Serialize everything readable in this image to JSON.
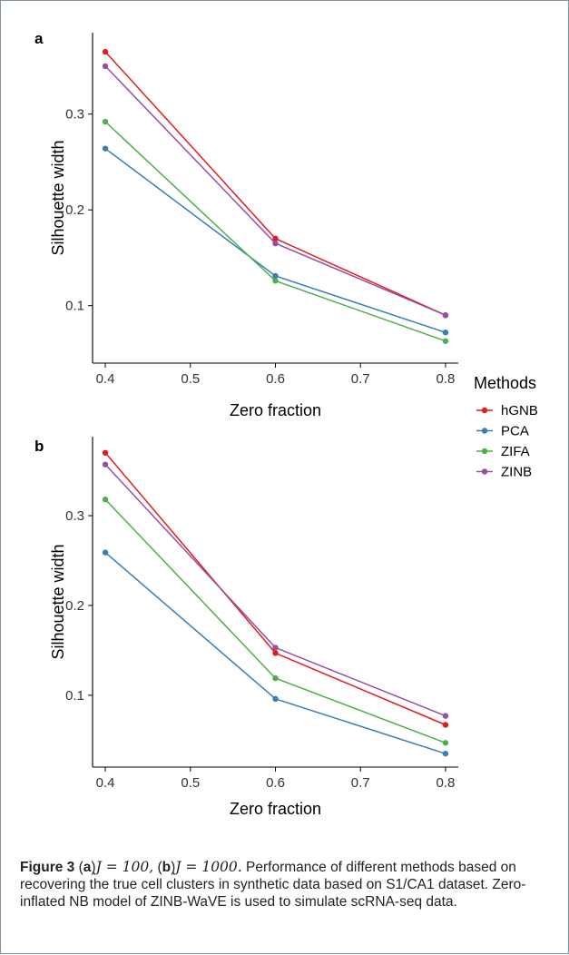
{
  "legend": {
    "title": "Methods",
    "entries": [
      {
        "label": "hGNB",
        "color": "#e41a1c"
      },
      {
        "label": "PCA",
        "color": "#377eb8"
      },
      {
        "label": "ZIFA",
        "color": "#4daf4a"
      },
      {
        "label": "ZINB",
        "color": "#984ea3"
      }
    ]
  },
  "caption": {
    "figure_label": "Figure 3",
    "part_a_label": "a",
    "part_a_math": "J = 100,",
    "part_b_label": "b",
    "part_b_math": "J = 1000.",
    "text": " Performance of different methods based on recovering the true cell clusters in synthetic data based on S1/CA1 dataset. Zero-inflated NB model of ZINB-WaVE is used to simulate scRNA-seq data."
  },
  "chart_data": [
    {
      "type": "line",
      "panel_label": "a",
      "xlabel": "Zero fraction",
      "ylabel": "Silhouette width",
      "xlim": [
        0.385,
        0.815
      ],
      "ylim": [
        0.04,
        0.385
      ],
      "xticks": [
        0.4,
        0.5,
        0.6,
        0.7,
        0.8
      ],
      "yticks": [
        0.1,
        0.2,
        0.3
      ],
      "x": [
        0.4,
        0.6,
        0.8
      ],
      "series": [
        {
          "name": "hGNB",
          "color": "#e41a1c",
          "values": [
            0.365,
            0.17,
            0.09
          ]
        },
        {
          "name": "PCA",
          "color": "#377eb8",
          "values": [
            0.264,
            0.131,
            0.072
          ]
        },
        {
          "name": "ZIFA",
          "color": "#4daf4a",
          "values": [
            0.292,
            0.126,
            0.063
          ]
        },
        {
          "name": "ZINB",
          "color": "#984ea3",
          "values": [
            0.35,
            0.165,
            0.09
          ]
        }
      ]
    },
    {
      "type": "line",
      "panel_label": "b",
      "xlabel": "Zero fraction",
      "ylabel": "Silhouette width",
      "xlim": [
        0.385,
        0.815
      ],
      "ylim": [
        0.02,
        0.388
      ],
      "xticks": [
        0.4,
        0.5,
        0.6,
        0.7,
        0.8
      ],
      "yticks": [
        0.1,
        0.2,
        0.3
      ],
      "x": [
        0.4,
        0.6,
        0.8
      ],
      "series": [
        {
          "name": "hGNB",
          "color": "#e41a1c",
          "values": [
            0.37,
            0.147,
            0.067
          ]
        },
        {
          "name": "PCA",
          "color": "#377eb8",
          "values": [
            0.259,
            0.096,
            0.035
          ]
        },
        {
          "name": "ZIFA",
          "color": "#4daf4a",
          "values": [
            0.318,
            0.119,
            0.047
          ]
        },
        {
          "name": "ZINB",
          "color": "#984ea3",
          "values": [
            0.357,
            0.153,
            0.077
          ]
        }
      ]
    }
  ]
}
